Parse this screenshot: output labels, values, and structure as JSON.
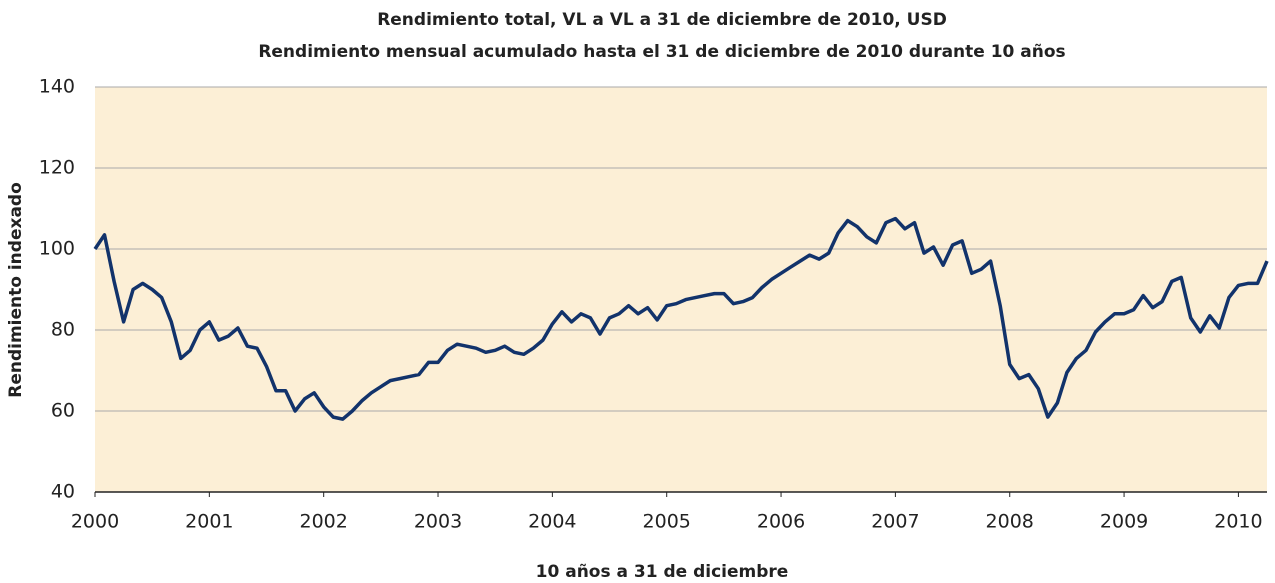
{
  "chart_data": {
    "type": "line",
    "title": "Rendimiento total, VL a VL a 31 de diciembre de 2010, USD",
    "subtitle": "Rendimiento mensual acumulado hasta el 31 de diciembre de 2010 durante 10 años",
    "xlabel": "10 años a 31 de diciembre",
    "ylabel": "Rendimiento indexado",
    "x": [
      2000,
      2000.083,
      2000.167,
      2000.25,
      2000.333,
      2000.417,
      2000.5,
      2000.583,
      2000.667,
      2000.75,
      2000.833,
      2000.917,
      2001,
      2001.083,
      2001.167,
      2001.25,
      2001.333,
      2001.417,
      2001.5,
      2001.583,
      2001.667,
      2001.75,
      2001.833,
      2001.917,
      2002,
      2002.083,
      2002.167,
      2002.25,
      2002.333,
      2002.417,
      2002.5,
      2002.583,
      2002.667,
      2002.75,
      2002.833,
      2002.917,
      2003,
      2003.083,
      2003.167,
      2003.25,
      2003.333,
      2003.417,
      2003.5,
      2003.583,
      2003.667,
      2003.75,
      2003.833,
      2003.917,
      2004,
      2004.083,
      2004.167,
      2004.25,
      2004.333,
      2004.417,
      2004.5,
      2004.583,
      2004.667,
      2004.75,
      2004.833,
      2004.917,
      2005,
      2005.083,
      2005.167,
      2005.25,
      2005.333,
      2005.417,
      2005.5,
      2005.583,
      2005.667,
      2005.75,
      2005.833,
      2005.917,
      2006,
      2006.083,
      2006.167,
      2006.25,
      2006.333,
      2006.417,
      2006.5,
      2006.583,
      2006.667,
      2006.75,
      2006.833,
      2006.917,
      2007,
      2007.083,
      2007.167,
      2007.25,
      2007.333,
      2007.417,
      2007.5,
      2007.583,
      2007.667,
      2007.75,
      2007.833,
      2007.917,
      2008,
      2008.083,
      2008.167,
      2008.25,
      2008.333,
      2008.417,
      2008.5,
      2008.583,
      2008.667,
      2008.75,
      2008.833,
      2008.917,
      2009,
      2009.083,
      2009.167,
      2009.25,
      2009.333,
      2009.417,
      2009.5,
      2009.583,
      2009.667,
      2009.75,
      2009.833,
      2009.917,
      2010,
      2010.083,
      2010.167,
      2010.25
    ],
    "series": [
      {
        "name": "Rendimiento",
        "color": "#12336b",
        "values": [
          100,
          103.5,
          92,
          82,
          90,
          91.5,
          90,
          88,
          82,
          73,
          75,
          80,
          82,
          77.5,
          78.5,
          80.5,
          76,
          75.5,
          71,
          65,
          65,
          60,
          63,
          64.5,
          61,
          58.5,
          58,
          60,
          62.5,
          64.5,
          66,
          67.5,
          68,
          68.5,
          69,
          72,
          72,
          75,
          76.5,
          76,
          75.5,
          74.5,
          75,
          76,
          74.5,
          74,
          75.5,
          77.5,
          81.5,
          84.5,
          82,
          84,
          83,
          79,
          83,
          84,
          86,
          84,
          85.5,
          82.5,
          86,
          86.5,
          87.5,
          88,
          88.5,
          89,
          89,
          86.5,
          87,
          88,
          90.5,
          92.5,
          94,
          95.5,
          97,
          98.5,
          97.5,
          99,
          104,
          107,
          105.5,
          103,
          101.5,
          106.5,
          107.5,
          105,
          106.5,
          99,
          100.5,
          96,
          101,
          102,
          94,
          95,
          97,
          86,
          71.5,
          68,
          69,
          65.5,
          58.5,
          62,
          69.5,
          73,
          75,
          79.5,
          82,
          84,
          84,
          85,
          88.5,
          85.5,
          87,
          92,
          93,
          83,
          79.5,
          83.5,
          80.5,
          88,
          91,
          91.5,
          91.5,
          97
        ]
      }
    ],
    "xlim": [
      2000,
      2010.25
    ],
    "xticks": [
      2000,
      2001,
      2002,
      2003,
      2004,
      2005,
      2006,
      2007,
      2008,
      2009,
      2010
    ],
    "ylim": [
      40,
      140
    ],
    "yticks": [
      40,
      60,
      80,
      100,
      120,
      140
    ],
    "grid": true,
    "background": "#fcefd6"
  }
}
